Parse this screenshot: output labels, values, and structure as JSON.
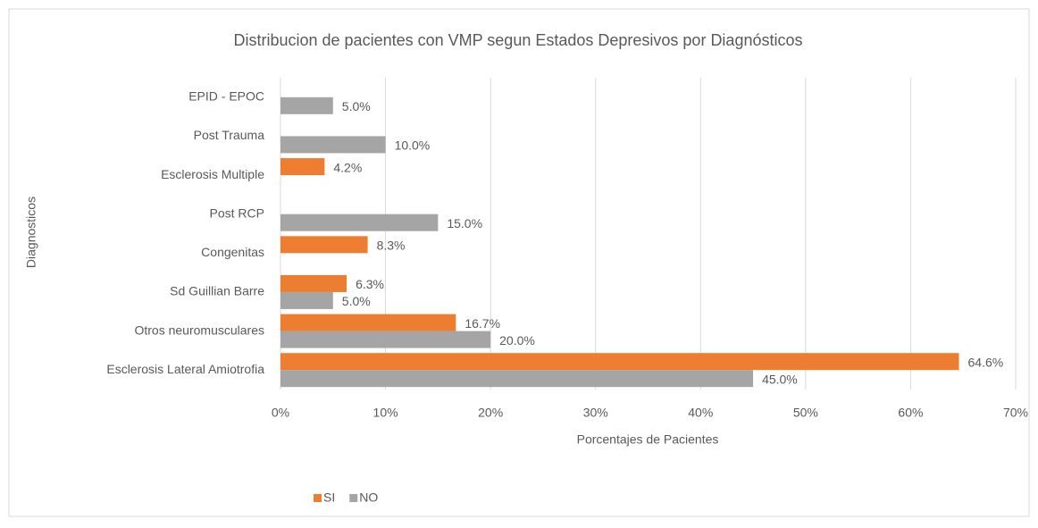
{
  "chart_data": {
    "type": "bar",
    "orientation": "horizontal",
    "title": "Distribucion de pacientes con VMP segun Estados Depresivos por Diagnósticos",
    "x_label": "Porcentajes de Pacientes",
    "y_label": "Diagnosticos",
    "categories": [
      "EPID - EPOC",
      "Post Trauma",
      "Esclerosis Multiple",
      "Post RCP",
      "Congenitas",
      "Sd Guillian Barre",
      "Otros neuromusculares",
      "Esclerosis Lateral Amiotrofia"
    ],
    "series": [
      {
        "name": "SI",
        "color": "#ed7d31",
        "values": [
          null,
          null,
          4.2,
          null,
          8.3,
          6.3,
          16.7,
          64.6
        ],
        "value_labels": [
          null,
          null,
          "4.2%",
          null,
          "8.3%",
          "6.3%",
          "16.7%",
          "64.6%"
        ]
      },
      {
        "name": "NO",
        "color": "#a5a5a5",
        "values": [
          5.0,
          10.0,
          null,
          15.0,
          null,
          5.0,
          20.0,
          45.0
        ],
        "value_labels": [
          "5.0%",
          "10.0%",
          null,
          "15.0%",
          null,
          "5.0%",
          "20.0%",
          "45.0%"
        ]
      }
    ],
    "xlim": [
      0,
      70
    ],
    "xticks": [
      {
        "value": 0,
        "label": "0%"
      },
      {
        "value": 10,
        "label": "10%"
      },
      {
        "value": 20,
        "label": "20%"
      },
      {
        "value": 30,
        "label": "30%"
      },
      {
        "value": 40,
        "label": "40%"
      },
      {
        "value": 50,
        "label": "50%"
      },
      {
        "value": 60,
        "label": "60%"
      },
      {
        "value": 70,
        "label": "70%"
      }
    ],
    "grid": true,
    "legend": "bottom"
  }
}
